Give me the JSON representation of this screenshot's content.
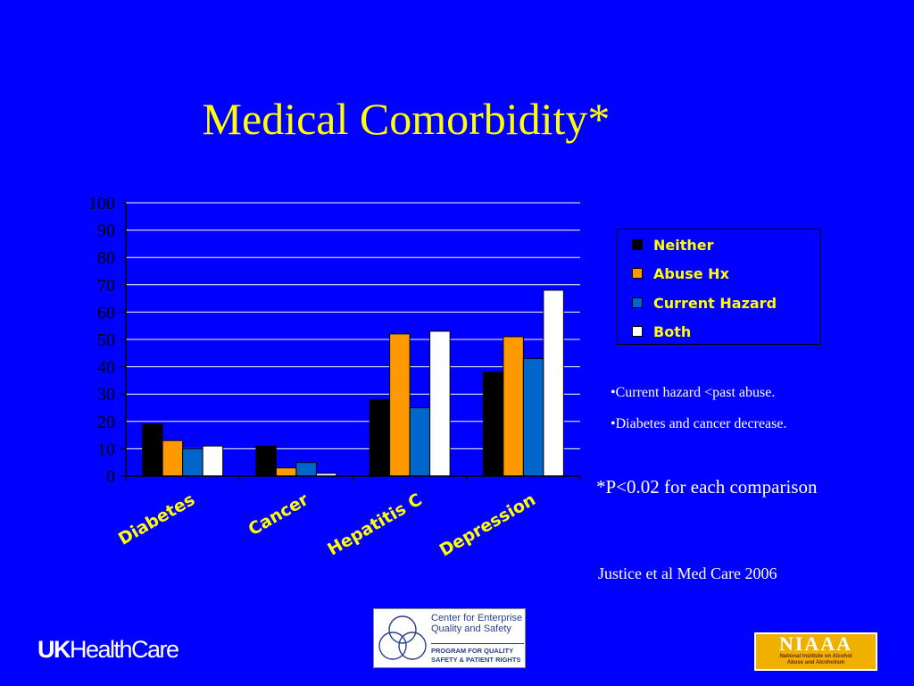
{
  "slide": {
    "title": "Medical Comorbidity*",
    "notes": [
      "•Current hazard <past abuse.",
      "•Diabetes and cancer decrease."
    ],
    "p_note": "*P<0.02 for each comparison",
    "citation": "Justice et al Med Care 2006"
  },
  "logos": {
    "uk": {
      "part1": "UK",
      "part2": "HealthCare"
    },
    "ceqs": {
      "line1": "Center for Enterprise",
      "line2": "Quality and Safety",
      "line3": "PROGRAM FOR QUALITY",
      "line4": "SAFETY & PATIENT RIGHTS"
    },
    "niaaa": {
      "name": "NIAAA",
      "line1": "National Institute on Alcohol",
      "line2": "Abuse and Alcoholism"
    }
  },
  "colors": {
    "background": "#0000ff",
    "title": "#ffff00",
    "gridline": "#ffffff",
    "axis_text": "#000000",
    "category_text": "#ffff00"
  },
  "chart_data": {
    "type": "bar",
    "categories": [
      "Diabetes",
      "Cancer",
      "Hepatitis C",
      "Depression"
    ],
    "series": [
      {
        "name": "Neither",
        "color": "#000000",
        "values": [
          19,
          11,
          28,
          38
        ]
      },
      {
        "name": "Abuse Hx",
        "color": "#ff9900",
        "values": [
          13,
          3,
          52,
          51
        ]
      },
      {
        "name": "Current Hazard",
        "color": "#0066cc",
        "values": [
          10,
          5,
          25,
          43
        ]
      },
      {
        "name": "Both",
        "color": "#ffffff",
        "values": [
          11,
          1,
          53,
          68
        ]
      }
    ],
    "ylim": [
      0,
      100
    ],
    "yticks": [
      0,
      10,
      20,
      30,
      40,
      50,
      60,
      70,
      80,
      90,
      100
    ],
    "grid": true,
    "legend_position": "right"
  }
}
